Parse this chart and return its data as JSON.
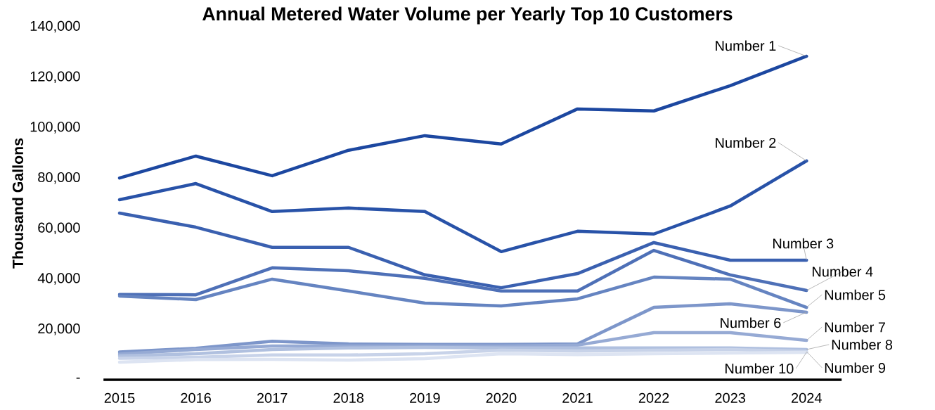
{
  "chart_data": {
    "type": "line",
    "title": "Annual Metered Water Volume per Yearly Top 10 Customers",
    "ylabel": "Thousand Gallons",
    "categories": [
      "2015",
      "2016",
      "2017",
      "2018",
      "2019",
      "2020",
      "2021",
      "2022",
      "2023",
      "2024"
    ],
    "ylim": [
      0,
      140000
    ],
    "yticks": [
      {
        "value": 0,
        "label": "-"
      },
      {
        "value": 20000,
        "label": "20,000"
      },
      {
        "value": 40000,
        "label": "40,000"
      },
      {
        "value": 60000,
        "label": "60,000"
      },
      {
        "value": 80000,
        "label": "80,000"
      },
      {
        "value": 100000,
        "label": "100,000"
      },
      {
        "value": 120000,
        "label": "120,000"
      },
      {
        "value": 140000,
        "label": "140,000"
      }
    ],
    "grid": false,
    "series": [
      {
        "name": "Number 1",
        "color": "#1c47a0",
        "values": [
          80000,
          88700,
          80900,
          91000,
          96800,
          93500,
          107400,
          106600,
          116600,
          128300
        ]
      },
      {
        "name": "Number 2",
        "color": "#2852a8",
        "values": [
          71400,
          77800,
          66700,
          68100,
          66700,
          50800,
          58900,
          57800,
          68900,
          86800
        ]
      },
      {
        "name": "Number 3",
        "color": "#3a60b0",
        "values": [
          66100,
          60500,
          52500,
          52500,
          41600,
          36500,
          42100,
          54400,
          47400,
          47400
        ]
      },
      {
        "name": "Number 4",
        "color": "#4e70b7",
        "values": [
          33800,
          33700,
          44400,
          43200,
          40200,
          35200,
          35200,
          51300,
          41600,
          35400
        ]
      },
      {
        "name": "Number 5",
        "color": "#6584c1",
        "values": [
          33200,
          31800,
          39900,
          35200,
          30400,
          29300,
          32100,
          40700,
          39900,
          28700
        ]
      },
      {
        "name": "Number 6",
        "color": "#7d96ca",
        "values": [
          11000,
          12500,
          15300,
          14200,
          14000,
          14000,
          14200,
          28700,
          30100,
          26800
        ]
      },
      {
        "name": "Number 7",
        "color": "#96aad4",
        "values": [
          10200,
          12000,
          13400,
          13400,
          13400,
          13400,
          13700,
          18700,
          18700,
          15600
        ]
      },
      {
        "name": "Number 8",
        "color": "#b0c0df",
        "values": [
          9500,
          10300,
          12000,
          12600,
          12800,
          12600,
          12600,
          12600,
          12600,
          12000
        ]
      },
      {
        "name": "Number 9",
        "color": "#c8d3e9",
        "values": [
          8500,
          8900,
          9800,
          9800,
          10300,
          11700,
          11400,
          11700,
          12000,
          11200
        ]
      },
      {
        "name": "Number 10",
        "color": "#dde4f2",
        "values": [
          7000,
          8000,
          8100,
          7800,
          8400,
          10300,
          10000,
          10300,
          10600,
          10900
        ]
      }
    ]
  }
}
